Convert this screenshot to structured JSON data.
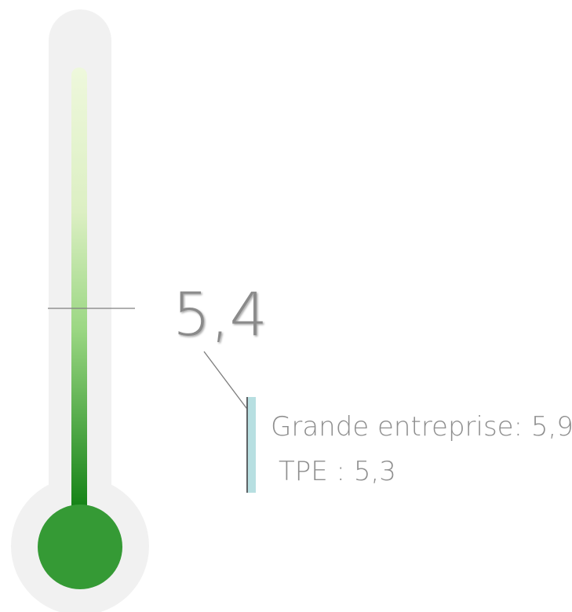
{
  "chart_data": {
    "type": "gauge",
    "value": 5.4,
    "value_label": "5,4",
    "scale_min": 0,
    "scale_max": 10,
    "comparisons": [
      {
        "label": "Grande entreprise:  5,9",
        "value": 5.9
      },
      {
        "label": "TPE : 5,3",
        "value": 5.3
      }
    ],
    "colors": {
      "tube_background": "#f1f1f1",
      "fill_top": "#eef8dc",
      "fill_mid": "#d8f0bb",
      "fill_bottom": "#0c7d10",
      "bulb": "#359a35",
      "marker_line": "#7f7f7f",
      "connector_line": "#7d7d7d",
      "bracket_bar": "#b7dfe1",
      "bracket_edge": "#5f6366",
      "value_text": "#8a8a8a",
      "comparison_text": "#8e8e8e"
    }
  }
}
